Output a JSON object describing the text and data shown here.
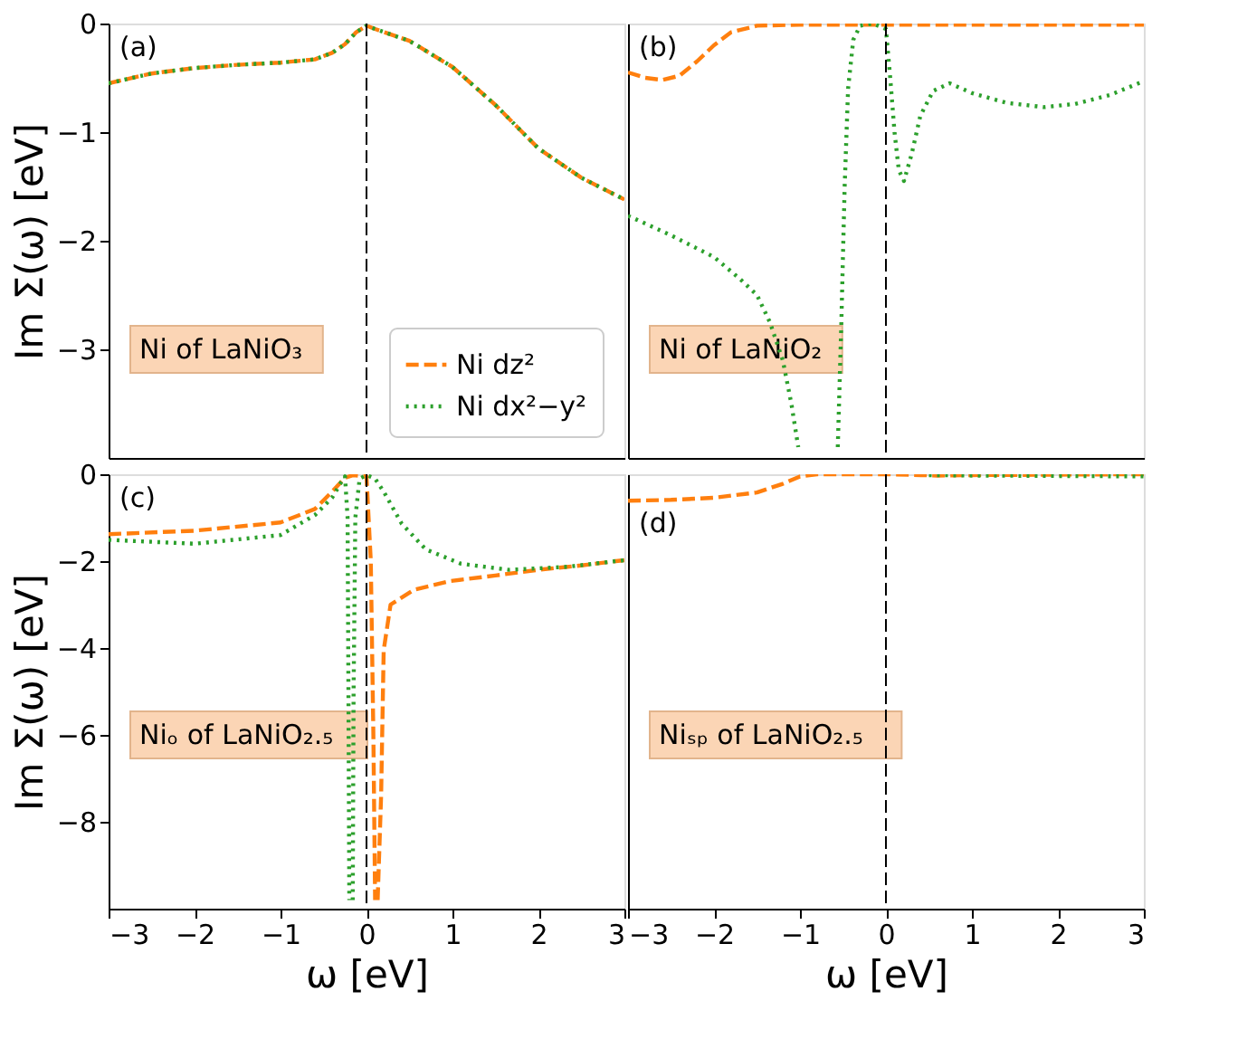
{
  "chart_data": [
    {
      "type": "line",
      "ylabel": "Im Σ(ω) [eV]",
      "xlim": [
        -3,
        3
      ],
      "xticks": [
        -3,
        -2,
        -1,
        0,
        1,
        2,
        3
      ],
      "ylim": [
        -4,
        0
      ],
      "yticks": [
        0,
        -1,
        -2,
        -3
      ],
      "tick_labels": "y",
      "legend": "bottom right",
      "grid": false,
      "annotations": [
        "(a)",
        "Ni of LaNiO₃"
      ],
      "ref_lines": [
        {
          "axis": "x",
          "value": 0,
          "color": "#000000",
          "line_style": "dashed"
        }
      ],
      "series": [
        {
          "name": "Ni dz²",
          "color": "#ff7f0e",
          "line_style": "dashed",
          "x": [
            -3,
            -2.5,
            -2,
            -1.5,
            -1,
            -0.6,
            -0.4,
            -0.25,
            -0.12,
            0,
            0.1,
            0.5,
            1,
            1.5,
            2,
            2.5,
            3
          ],
          "values": [
            -0.55,
            -0.46,
            -0.41,
            -0.38,
            -0.36,
            -0.33,
            -0.27,
            -0.19,
            -0.08,
            -0.02,
            -0.05,
            -0.16,
            -0.4,
            -0.75,
            -1.15,
            -1.42,
            -1.62
          ]
        },
        {
          "name": "Ni dx²−y²",
          "color": "#2ca02c",
          "line_style": "dotted",
          "x": [
            -3,
            -2.5,
            -2,
            -1.5,
            -1,
            -0.6,
            -0.4,
            -0.25,
            -0.12,
            0,
            0.1,
            0.5,
            1,
            1.5,
            2,
            2.5,
            3
          ],
          "values": [
            -0.55,
            -0.46,
            -0.41,
            -0.38,
            -0.36,
            -0.33,
            -0.27,
            -0.19,
            -0.08,
            -0.02,
            -0.05,
            -0.16,
            -0.4,
            -0.75,
            -1.15,
            -1.42,
            -1.62
          ]
        }
      ]
    },
    {
      "type": "line",
      "xlim": [
        -3,
        3
      ],
      "xticks": [
        -3,
        -2,
        -1,
        0,
        1,
        2,
        3
      ],
      "ylim": [
        -4,
        0
      ],
      "yticks": [
        0,
        -1,
        -2,
        -3
      ],
      "tick_labels": false,
      "legend": false,
      "grid": false,
      "annotations": [
        "(b)",
        "Ni of LaNiO₂"
      ],
      "ref_lines": [
        {
          "axis": "x",
          "value": 0,
          "color": "#000000",
          "line_style": "dashed"
        }
      ],
      "series": [
        {
          "color": "#ff7f0e",
          "line_style": "dashed",
          "x": [
            -3,
            -2.8,
            -2.6,
            -2.4,
            -2.2,
            -2,
            -1.8,
            -1.5,
            -1,
            0,
            1,
            2,
            3
          ],
          "values": [
            -0.45,
            -0.5,
            -0.52,
            -0.48,
            -0.35,
            -0.2,
            -0.08,
            -0.02,
            -0.01,
            -0.01,
            -0.01,
            -0.01,
            -0.01
          ]
        },
        {
          "color": "#2ca02c",
          "line_style": "dotted",
          "x": [
            -3,
            -2.5,
            -2,
            -1.7,
            -1.5,
            -1.35,
            -1.2,
            -1.1,
            -1.02,
            -0.8,
            -0.56,
            -0.52,
            -0.48,
            -0.44,
            -0.38,
            -0.3,
            -0.15,
            0,
            0.05,
            0.1,
            0.15,
            0.21,
            0.3,
            0.4,
            0.55,
            0.74,
            1,
            1.4,
            1.84,
            2.2,
            2.6,
            3
          ],
          "values": [
            -1.77,
            -1.95,
            -2.15,
            -2.35,
            -2.5,
            -2.75,
            -3.1,
            -3.5,
            -3.9,
            null,
            -3.9,
            -2.8,
            -1.5,
            -0.6,
            -0.15,
            -0.02,
            0,
            -0.05,
            -0.5,
            -1.0,
            -1.35,
            -1.45,
            -1.2,
            -0.85,
            -0.62,
            -0.55,
            -0.64,
            -0.73,
            -0.77,
            -0.74,
            -0.66,
            -0.53
          ]
        }
      ]
    },
    {
      "type": "line",
      "xlabel": "ω [eV]",
      "ylabel": "Im Σ(ω) [eV]",
      "xlim": [
        -3,
        3
      ],
      "xticks": [
        -3,
        -2,
        -1,
        0,
        1,
        2,
        3
      ],
      "ylim": [
        -10,
        0
      ],
      "yticks": [
        0,
        -2,
        -4,
        -6,
        -8
      ],
      "legend": false,
      "grid": false,
      "annotations": [
        "(c)",
        "Niₒ of LaNiO₂.₅"
      ],
      "ref_lines": [
        {
          "axis": "x",
          "value": 0,
          "color": "#000000",
          "line_style": "dashed"
        }
      ],
      "series": [
        {
          "color": "#ff7f0e",
          "line_style": "dashed",
          "x": [
            -3,
            -2,
            -1,
            -0.6,
            -0.4,
            -0.25,
            -0.15,
            0,
            0.05,
            0.08,
            0.1,
            0.11,
            0.13,
            0.17,
            0.2,
            0.28,
            0.55,
            0.97,
            1.5,
            2,
            2.5,
            2.9,
            3
          ],
          "values": [
            -1.38,
            -1.3,
            -1.11,
            -0.8,
            -0.4,
            -0.08,
            -0.02,
            -0.05,
            -2,
            -6,
            -9.8,
            null,
            -9.8,
            -7.4,
            -4.05,
            -3.0,
            -2.66,
            -2.46,
            -2.33,
            -2.2,
            -2.1,
            -2.0,
            -1.98
          ]
        },
        {
          "color": "#2ca02c",
          "line_style": "dotted",
          "x": [
            -3,
            -2,
            -1,
            -0.6,
            -0.4,
            -0.3,
            -0.25,
            -0.22,
            -0.21,
            -0.2,
            -0.18,
            -0.16,
            -0.15,
            -0.13,
            -0.08,
            0,
            0.1,
            0.2,
            0.41,
            0.69,
            1.1,
            1.66,
            2.34,
            2.9,
            3
          ],
          "values": [
            -1.51,
            -1.6,
            -1.4,
            -0.94,
            -0.54,
            -0.2,
            -0.05,
            -1,
            -5,
            -9.8,
            null,
            -9.8,
            -5,
            -1,
            -0.1,
            -0.02,
            -0.1,
            -0.4,
            -1.14,
            -1.73,
            -2.06,
            -2.2,
            -2.13,
            -2.0,
            -1.98
          ]
        }
      ]
    },
    {
      "type": "line",
      "xlabel": "ω [eV]",
      "xlim": [
        -3,
        3
      ],
      "xticks": [
        -3,
        -2,
        -1,
        0,
        1,
        2,
        3
      ],
      "ylim": [
        -10,
        0
      ],
      "yticks": [
        0,
        -2,
        -4,
        -6,
        -8
      ],
      "tick_labels": "x",
      "legend": false,
      "grid": false,
      "annotations": [
        "(d)",
        "Niₛₚ of LaNiO₂.₅"
      ],
      "ref_lines": [
        {
          "axis": "x",
          "value": 0,
          "color": "#000000",
          "line_style": "dashed"
        }
      ],
      "series": [
        {
          "color": "#ff7f0e",
          "line_style": "dashed",
          "x": [
            -3,
            -2.5,
            -2,
            -1.5,
            -1.2,
            -1,
            -0.8,
            0,
            0.6,
            1,
            2,
            3
          ],
          "values": [
            -0.61,
            -0.59,
            -0.54,
            -0.42,
            -0.22,
            -0.05,
            0,
            0,
            -0.03,
            -0.02,
            -0.01,
            0
          ]
        },
        {
          "color": "#2ca02c",
          "line_style": "dotted",
          "x": [
            0.5,
            1,
            2,
            3
          ],
          "values": [
            -0.02,
            -0.03,
            -0.04,
            -0.05
          ]
        }
      ]
    }
  ]
}
